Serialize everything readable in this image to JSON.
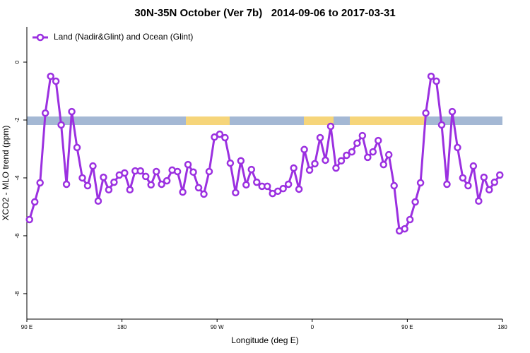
{
  "chart_data": {
    "type": "line",
    "title": "30N-35N October (Ver 7b)   2014-09-06 to 2017-03-31",
    "x_label": "Longitude (deg E)",
    "y_label": "XCO2 - MLO trend (ppm)",
    "xlim": [
      90,
      540
    ],
    "ylim": [
      -8.88,
      1.22
    ],
    "xticks": [
      {
        "value": 90,
        "label": "90 E"
      },
      180,
      {
        "value": 270,
        "label": "90 W"
      },
      {
        "value": 360,
        "label": "0"
      },
      {
        "value": 450,
        "label": "90 E"
      },
      {
        "value": 540,
        "label": "180"
      }
    ],
    "yticks": [
      0,
      -2,
      -4,
      -6,
      -8
    ],
    "legend": "top-left",
    "x": [
      92.5,
      97.5,
      102.5,
      107.5,
      112.5,
      117.5,
      122.5,
      127.5,
      132.5,
      137.5,
      142.5,
      147.5,
      152.5,
      157.5,
      162.5,
      167.5,
      172.5,
      177.5,
      182.5,
      187.5,
      192.5,
      197.5,
      202.5,
      207.5,
      212.5,
      217.5,
      222.5,
      227.5,
      232.5,
      237.5,
      242.5,
      247.5,
      252.5,
      257.5,
      262.5,
      267.5,
      272.5,
      277.5,
      282.5,
      287.5,
      292.5,
      297.5,
      302.5,
      307.5,
      312.5,
      317.5,
      322.5,
      327.5,
      332.5,
      337.5,
      342.5,
      347.5,
      352.5,
      357.5,
      362.5,
      367.5,
      372.5,
      377.5,
      382.5,
      387.5,
      392.5,
      397.5,
      402.5,
      407.5,
      412.5,
      417.5,
      422.5,
      427.5,
      432.5,
      437.5,
      442.5,
      447.5,
      452.5,
      457.5,
      462.5,
      467.5,
      472.5,
      477.5,
      482.5,
      487.5,
      492.5,
      497.5,
      502.5,
      507.5,
      512.5,
      517.5,
      522.5,
      527.5,
      532.5,
      537.5
    ],
    "series": [
      {
        "name": "Land (Nadir&Glint) and Ocean (Glint)",
        "color": "#9b30e0",
        "values": [
          -5.44,
          -4.83,
          -4.17,
          -1.76,
          -0.49,
          -0.66,
          -2.17,
          -4.22,
          -1.71,
          -2.95,
          -4.0,
          -4.27,
          -3.59,
          -4.8,
          -3.98,
          -4.41,
          -4.15,
          -3.9,
          -3.83,
          -4.41,
          -3.76,
          -3.76,
          -3.95,
          -4.24,
          -3.78,
          -4.22,
          -4.1,
          -3.73,
          -3.78,
          -4.49,
          -3.54,
          -3.8,
          -4.34,
          -4.56,
          -3.78,
          -2.59,
          -2.49,
          -2.61,
          -3.49,
          -4.51,
          -3.41,
          -4.24,
          -3.71,
          -4.15,
          -4.29,
          -4.29,
          -4.54,
          -4.46,
          -4.37,
          -4.22,
          -3.66,
          -4.39,
          -3.02,
          -3.73,
          -3.51,
          -2.61,
          -3.39,
          -2.22,
          -3.66,
          -3.41,
          -3.22,
          -3.1,
          -2.8,
          -2.54,
          -3.29,
          -3.1,
          -2.71,
          -3.54,
          -3.2,
          -4.27,
          -5.83,
          -5.76,
          -5.44,
          -4.83,
          -4.17,
          -1.76,
          -0.49,
          -0.66,
          -2.17,
          -4.22,
          -1.71,
          -2.95,
          -4.0,
          -4.27,
          -3.59,
          -4.8,
          -3.98,
          -4.41,
          -4.15,
          -3.9
        ]
      }
    ]
  }
}
